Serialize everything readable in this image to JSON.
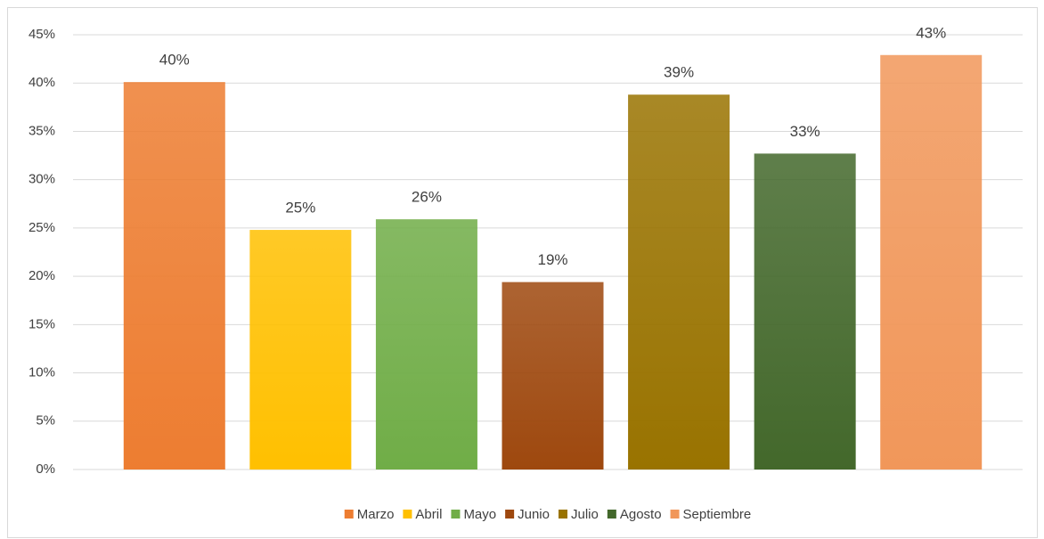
{
  "chart_data": {
    "type": "bar",
    "series": [
      {
        "name": "Marzo",
        "color": "#ed7d31",
        "values": [
          40.1
        ],
        "value_labels": [
          "40%"
        ]
      },
      {
        "name": "Abril",
        "color": "#ffc000",
        "values": [
          24.8
        ],
        "value_labels": [
          "25%"
        ]
      },
      {
        "name": "Mayo",
        "color": "#70ad47",
        "values": [
          25.9
        ],
        "value_labels": [
          "26%"
        ]
      },
      {
        "name": "Junio",
        "color": "#9e480e",
        "values": [
          19.4
        ],
        "value_labels": [
          "19%"
        ]
      },
      {
        "name": "Julio",
        "color": "#997300",
        "values": [
          38.8
        ],
        "value_labels": [
          "39%"
        ]
      },
      {
        "name": "Agosto",
        "color": "#43682b",
        "values": [
          32.7
        ],
        "value_labels": [
          "33%"
        ]
      },
      {
        "name": "Septiembre",
        "color": "#f1975a",
        "values": [
          42.9
        ],
        "value_labels": [
          "43%"
        ]
      }
    ],
    "ylim": [
      0,
      45
    ],
    "yticks": [
      {
        "value": 0,
        "label": "0%"
      },
      {
        "value": 5,
        "label": "5%"
      },
      {
        "value": 10,
        "label": "10%"
      },
      {
        "value": 15,
        "label": "15%"
      },
      {
        "value": 20,
        "label": "20%"
      },
      {
        "value": 25,
        "label": "25%"
      },
      {
        "value": 30,
        "label": "30%"
      },
      {
        "value": 35,
        "label": "35%"
      },
      {
        "value": 40,
        "label": "40%"
      },
      {
        "value": 45,
        "label": "45%"
      }
    ],
    "grid": true,
    "legend": "bottom"
  }
}
